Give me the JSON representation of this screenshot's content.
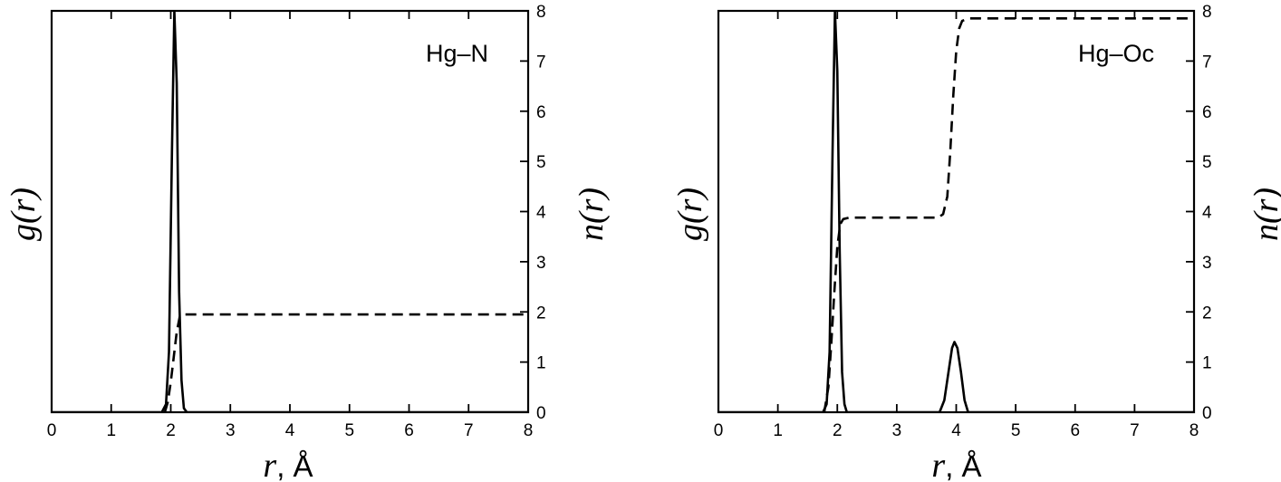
{
  "chart_data": [
    {
      "type": "line",
      "panel_label": "Hg–N",
      "xlabel": "r, Å",
      "ylabel_left": "g(r)",
      "ylabel_right": "n(r)",
      "xlim": [
        0,
        8
      ],
      "x_ticks": [
        "0",
        "1",
        "2",
        "3",
        "4",
        "5",
        "6",
        "7",
        "8"
      ],
      "y_right_lim": [
        0,
        8
      ],
      "y_right_ticks": [
        "0",
        "1",
        "2",
        "3",
        "4",
        "5",
        "6",
        "7",
        "8"
      ],
      "grid": false,
      "series": [
        {
          "style": "solid",
          "axis": "left",
          "x": [
            0,
            1.85,
            1.92,
            1.97,
            2.02,
            2.06,
            2.1,
            2.14,
            2.18,
            2.22,
            2.27,
            8
          ],
          "y": [
            0,
            0,
            0.02,
            0.15,
            0.65,
            1.0,
            0.82,
            0.3,
            0.08,
            0.01,
            0,
            0
          ]
        },
        {
          "style": "dashed",
          "axis": "right",
          "x": [
            1.9,
            1.95,
            2.0,
            2.05,
            2.1,
            2.15,
            2.2,
            8
          ],
          "y": [
            0,
            0.2,
            0.6,
            1.1,
            1.6,
            1.9,
            1.95,
            1.95
          ]
        }
      ]
    },
    {
      "type": "line",
      "panel_label": "Hg–Oc",
      "xlabel": "r, Å",
      "ylabel_left": "g(r)",
      "ylabel_right": "n(r)",
      "xlim": [
        0,
        8
      ],
      "x_ticks": [
        "0",
        "1",
        "2",
        "3",
        "4",
        "5",
        "6",
        "7",
        "8"
      ],
      "y_right_lim": [
        0,
        8
      ],
      "y_right_ticks": [
        "0",
        "1",
        "2",
        "3",
        "4",
        "5",
        "6",
        "7",
        "8"
      ],
      "grid": false,
      "series": [
        {
          "style": "solid",
          "axis": "left",
          "x": [
            0,
            1.76,
            1.82,
            1.87,
            1.92,
            1.96,
            2.0,
            2.04,
            2.08,
            2.12,
            2.16,
            3.72,
            3.8,
            3.87,
            3.93,
            3.97,
            4.02,
            4.08,
            4.14,
            4.2,
            8
          ],
          "y": [
            0,
            0,
            0.02,
            0.15,
            0.65,
            1.0,
            0.85,
            0.4,
            0.1,
            0.02,
            0,
            0,
            0.03,
            0.1,
            0.16,
            0.175,
            0.16,
            0.1,
            0.03,
            0,
            0
          ]
        },
        {
          "style": "dashed",
          "axis": "right",
          "x": [
            1.78,
            1.85,
            1.9,
            1.95,
            2.0,
            2.05,
            2.1,
            2.2,
            3.7,
            3.78,
            3.85,
            3.9,
            3.95,
            4.0,
            4.05,
            4.1,
            4.2,
            4.35,
            8
          ],
          "y": [
            0,
            0.5,
            1.4,
            2.4,
            3.3,
            3.75,
            3.85,
            3.88,
            3.88,
            3.95,
            4.3,
            5.2,
            6.3,
            7.2,
            7.65,
            7.8,
            7.85,
            7.85,
            7.85
          ]
        }
      ]
    }
  ]
}
